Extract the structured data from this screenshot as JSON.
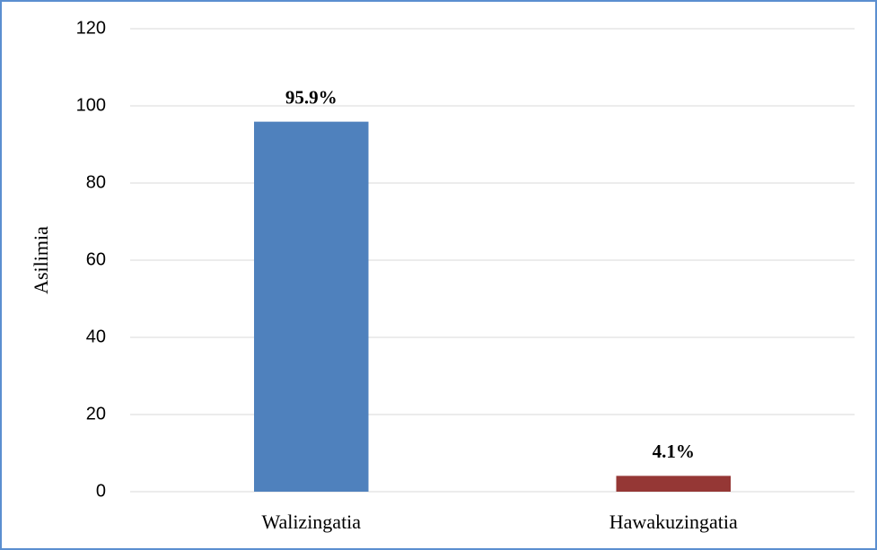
{
  "chart_data": {
    "type": "bar",
    "y_label": "Asilimia",
    "categories": [
      "Walizingatia",
      "Hawakuzingatia"
    ],
    "values": [
      95.9,
      4.1
    ],
    "value_labels": [
      "95.9%",
      "4.1%"
    ],
    "colors": [
      "#4f81bd",
      "#953735"
    ],
    "ylim": [
      0,
      120
    ],
    "yticks": [
      0,
      20,
      40,
      60,
      80,
      100,
      120
    ],
    "grid": true
  }
}
